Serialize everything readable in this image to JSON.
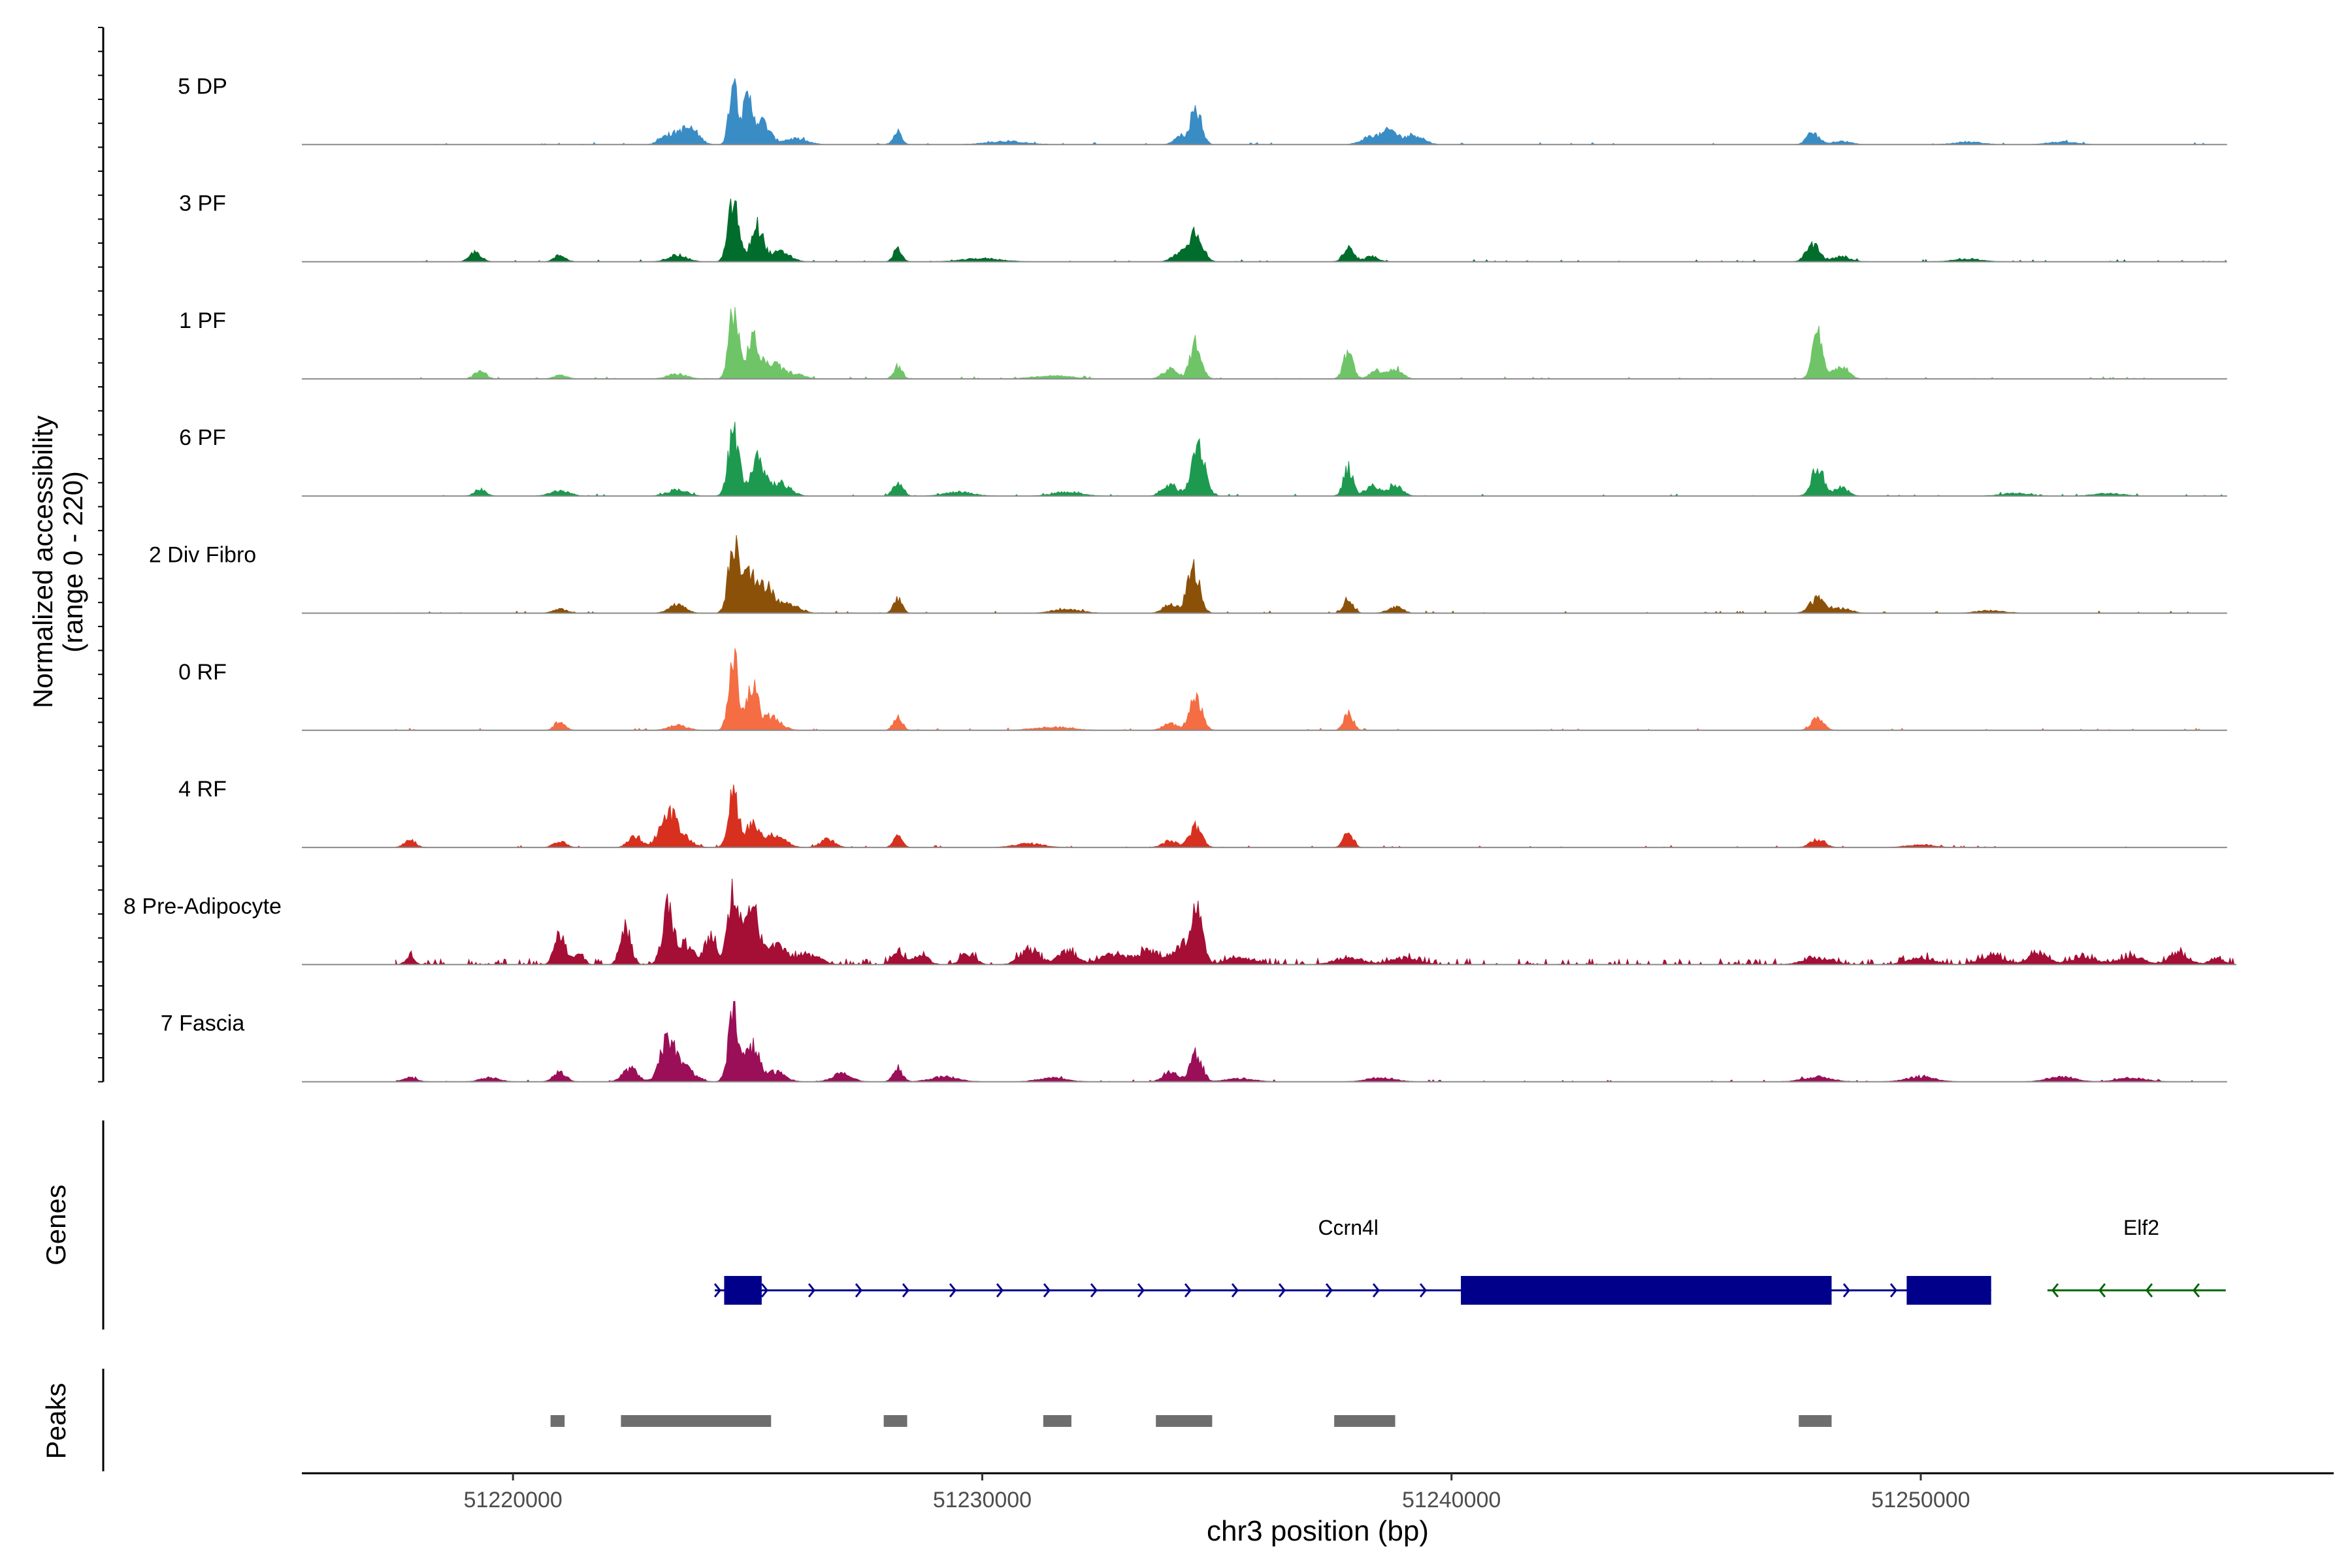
{
  "chart_data": {
    "type": "area",
    "title": "",
    "ylabel": "Normalized accessibility",
    "ylabel_range": "(range 0 - 220)",
    "xlabel": "chr3 position (bp)",
    "xlim": [
      51215500,
      51258800
    ],
    "ylim": [
      0,
      220
    ],
    "x_ticks": [
      51220000,
      51230000,
      51240000,
      51250000
    ],
    "x_tick_labels": [
      "51220000",
      "51230000",
      "51240000",
      "51250000"
    ],
    "tracks": [
      {
        "name": "5 DP",
        "color": "#3a8cc5",
        "peaks": [
          [
            51223200,
            25,
            120
          ],
          [
            51223500,
            30,
            150
          ],
          [
            51223800,
            45,
            170
          ],
          [
            51224700,
            205,
            90
          ],
          [
            51225000,
            130,
            100
          ],
          [
            51225300,
            70,
            160
          ],
          [
            51226000,
            18,
            250
          ],
          [
            51228200,
            40,
            90
          ],
          [
            51230500,
            10,
            400
          ],
          [
            51234200,
            25,
            120
          ],
          [
            51234550,
            110,
            120
          ],
          [
            51238300,
            25,
            200
          ],
          [
            51238700,
            40,
            150
          ],
          [
            51239200,
            30,
            200
          ],
          [
            51247700,
            35,
            130
          ],
          [
            51248300,
            10,
            200
          ],
          [
            51251000,
            8,
            300
          ],
          [
            51253000,
            8,
            300
          ]
        ],
        "end": 51256500
      },
      {
        "name": "3 PF",
        "color": "#006d2c",
        "peaks": [
          [
            51219200,
            30,
            120
          ],
          [
            51221000,
            20,
            120
          ],
          [
            51223500,
            20,
            200
          ],
          [
            51224700,
            185,
            110
          ],
          [
            51225200,
            110,
            130
          ],
          [
            51225700,
            30,
            200
          ],
          [
            51228200,
            40,
            90
          ],
          [
            51230000,
            10,
            400
          ],
          [
            51234200,
            25,
            150
          ],
          [
            51234550,
            95,
            140
          ],
          [
            51237800,
            40,
            110
          ],
          [
            51238300,
            15,
            150
          ],
          [
            51247700,
            50,
            140
          ],
          [
            51248300,
            15,
            200
          ],
          [
            51251000,
            8,
            300
          ]
        ],
        "end": 51256500
      },
      {
        "name": "1 PF",
        "color": "#6fc467",
        "peaks": [
          [
            51219300,
            25,
            120
          ],
          [
            51221000,
            10,
            150
          ],
          [
            51223500,
            15,
            200
          ],
          [
            51224700,
            215,
            100
          ],
          [
            51225100,
            120,
            120
          ],
          [
            51225500,
            50,
            200
          ],
          [
            51226000,
            15,
            200
          ],
          [
            51228200,
            40,
            90
          ],
          [
            51231500,
            10,
            400
          ],
          [
            51234000,
            30,
            150
          ],
          [
            51234550,
            110,
            120
          ],
          [
            51237800,
            85,
            100
          ],
          [
            51238400,
            25,
            150
          ],
          [
            51238800,
            30,
            150
          ],
          [
            51247800,
            135,
            110
          ],
          [
            51248300,
            40,
            150
          ]
        ],
        "end": 51256500
      },
      {
        "name": "6 PF",
        "color": "#1d9a4f",
        "peaks": [
          [
            51219300,
            20,
            120
          ],
          [
            51221000,
            15,
            200
          ],
          [
            51223500,
            20,
            200
          ],
          [
            51224700,
            200,
            110
          ],
          [
            51225200,
            125,
            140
          ],
          [
            51225700,
            40,
            200
          ],
          [
            51228200,
            45,
            100
          ],
          [
            51229500,
            12,
            300
          ],
          [
            51231800,
            12,
            300
          ],
          [
            51234000,
            35,
            150
          ],
          [
            51234600,
            165,
            140
          ],
          [
            51237800,
            85,
            100
          ],
          [
            51238300,
            30,
            150
          ],
          [
            51238800,
            30,
            150
          ],
          [
            51247800,
            90,
            130
          ],
          [
            51248300,
            25,
            150
          ],
          [
            51252000,
            8,
            300
          ],
          [
            51254000,
            8,
            300
          ]
        ],
        "end": 51256500
      },
      {
        "name": "2 Div Fibro",
        "color": "#8c5109",
        "peaks": [
          [
            51221000,
            12,
            150
          ],
          [
            51223500,
            25,
            180
          ],
          [
            51224700,
            215,
            110
          ],
          [
            51225000,
            140,
            130
          ],
          [
            51225400,
            90,
            160
          ],
          [
            51225900,
            25,
            200
          ],
          [
            51228200,
            45,
            90
          ],
          [
            51231800,
            12,
            300
          ],
          [
            51234000,
            25,
            150
          ],
          [
            51234500,
            140,
            130
          ],
          [
            51237800,
            45,
            100
          ],
          [
            51238800,
            20,
            150
          ],
          [
            51247800,
            45,
            160
          ],
          [
            51248300,
            15,
            200
          ],
          [
            51251500,
            8,
            300
          ]
        ],
        "end": 51256500
      },
      {
        "name": "0 RF",
        "color": "#f46d43",
        "peaks": [
          [
            51221000,
            28,
            110
          ],
          [
            51223500,
            15,
            200
          ],
          [
            51224700,
            225,
            100
          ],
          [
            51225100,
            130,
            120
          ],
          [
            51225500,
            40,
            200
          ],
          [
            51228200,
            45,
            90
          ],
          [
            51231500,
            10,
            400
          ],
          [
            51234000,
            20,
            150
          ],
          [
            51234550,
            105,
            130
          ],
          [
            51237800,
            55,
            100
          ],
          [
            51247800,
            35,
            130
          ]
        ],
        "end": 51256500
      },
      {
        "name": "4 RF",
        "color": "#d7301f",
        "peaks": [
          [
            51217800,
            22,
            120
          ],
          [
            51221000,
            18,
            130
          ],
          [
            51222600,
            35,
            140
          ],
          [
            51223300,
            95,
            180
          ],
          [
            51223600,
            30,
            200
          ],
          [
            51224700,
            165,
            110
          ],
          [
            51225100,
            75,
            130
          ],
          [
            51225600,
            40,
            200
          ],
          [
            51226700,
            25,
            150
          ],
          [
            51228200,
            45,
            90
          ],
          [
            51231000,
            12,
            300
          ],
          [
            51234000,
            20,
            150
          ],
          [
            51234550,
            65,
            130
          ],
          [
            51237800,
            45,
            100
          ],
          [
            51247800,
            25,
            150
          ],
          [
            51250000,
            8,
            300
          ]
        ],
        "end": 51256500
      },
      {
        "name": "8 Pre-Adipocyte",
        "color": "#a50f35",
        "peaks": [
          [
            51217800,
            20,
            100
          ],
          [
            51221000,
            100,
            110
          ],
          [
            51221400,
            40,
            100
          ],
          [
            51222400,
            120,
            110
          ],
          [
            51223300,
            170,
            120
          ],
          [
            51223700,
            60,
            150
          ],
          [
            51224200,
            90,
            120
          ],
          [
            51224700,
            250,
            110
          ],
          [
            51225100,
            170,
            140
          ],
          [
            51225600,
            60,
            200
          ],
          [
            51226300,
            30,
            250
          ],
          [
            51228200,
            45,
            120
          ],
          [
            51228700,
            30,
            150
          ],
          [
            51229700,
            35,
            150
          ],
          [
            51231000,
            45,
            200
          ],
          [
            51231800,
            40,
            200
          ],
          [
            51232800,
            30,
            300
          ],
          [
            51233600,
            40,
            250
          ],
          [
            51234300,
            60,
            200
          ],
          [
            51234600,
            165,
            110
          ],
          [
            51235500,
            20,
            300
          ],
          [
            51237800,
            20,
            300
          ],
          [
            51239000,
            20,
            300
          ],
          [
            51247800,
            20,
            300
          ],
          [
            51250000,
            20,
            300
          ],
          [
            51251500,
            25,
            250
          ],
          [
            51252500,
            35,
            200
          ],
          [
            51253500,
            20,
            300
          ],
          [
            51254500,
            25,
            250
          ],
          [
            51255500,
            35,
            200
          ],
          [
            51256300,
            20,
            150
          ]
        ],
        "end": 51256700,
        "noise": true
      },
      {
        "name": "7 Fascia",
        "color": "#9a0f58",
        "peaks": [
          [
            51217800,
            12,
            150
          ],
          [
            51219500,
            12,
            200
          ],
          [
            51221000,
            30,
            130
          ],
          [
            51222500,
            40,
            160
          ],
          [
            51223300,
            135,
            150
          ],
          [
            51223700,
            40,
            180
          ],
          [
            51224700,
            210,
            110
          ],
          [
            51225100,
            110,
            140
          ],
          [
            51225600,
            30,
            200
          ],
          [
            51227000,
            25,
            200
          ],
          [
            51228200,
            40,
            100
          ],
          [
            51229200,
            15,
            300
          ],
          [
            51231500,
            12,
            300
          ],
          [
            51234000,
            30,
            150
          ],
          [
            51234550,
            85,
            130
          ],
          [
            51235500,
            10,
            300
          ],
          [
            51238500,
            12,
            300
          ],
          [
            51247800,
            15,
            300
          ],
          [
            51250000,
            15,
            300
          ],
          [
            51253000,
            15,
            300
          ],
          [
            51254500,
            12,
            300
          ]
        ],
        "end": 51256500
      }
    ],
    "genes_label": "Genes",
    "genes": [
      {
        "name": "Ccrn4l",
        "strand": "+",
        "start": 51224300,
        "end": 51251500,
        "color": "#00008b",
        "exons": [
          [
            51224500,
            51225300
          ],
          [
            51240200,
            51248100
          ],
          [
            51249700,
            51251500
          ]
        ]
      },
      {
        "name": "Elf2",
        "strand": "-",
        "start": 51252700,
        "end": 51256500,
        "color": "#006400",
        "exons": []
      }
    ],
    "peaks_label": "Peaks",
    "peak_regions": [
      [
        51220800,
        51221100
      ],
      [
        51222300,
        51225500
      ],
      [
        51227900,
        51228400
      ],
      [
        51231300,
        51231900
      ],
      [
        51233700,
        51234900
      ],
      [
        51237500,
        51238800
      ],
      [
        51247400,
        51248100
      ]
    ]
  }
}
